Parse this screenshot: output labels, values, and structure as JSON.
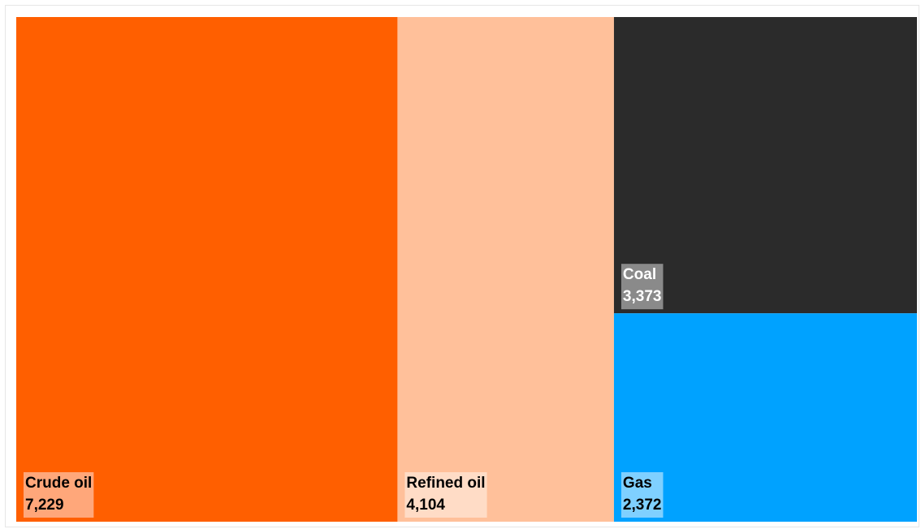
{
  "chart_data": {
    "type": "treemap",
    "title": "",
    "items": [
      {
        "name": "Crude oil",
        "value": 7229,
        "display": "7,229",
        "color": "#ff5f00",
        "label_bg": "#ffa77a",
        "label_color": "#000000"
      },
      {
        "name": "Refined oil",
        "value": 4104,
        "display": "4,104",
        "color": "#ffc09a",
        "label_bg": "#ffdcc6",
        "label_color": "#000000"
      },
      {
        "name": "Coal",
        "value": 3373,
        "display": "3,373",
        "color": "#2b2b2b",
        "label_bg": "#8a8a8a",
        "label_color": "#ffffff"
      },
      {
        "name": "Gas",
        "value": 2372,
        "display": "2,372",
        "color": "#00a2ff",
        "label_bg": "#7fd0ff",
        "label_color": "#000000"
      }
    ]
  }
}
